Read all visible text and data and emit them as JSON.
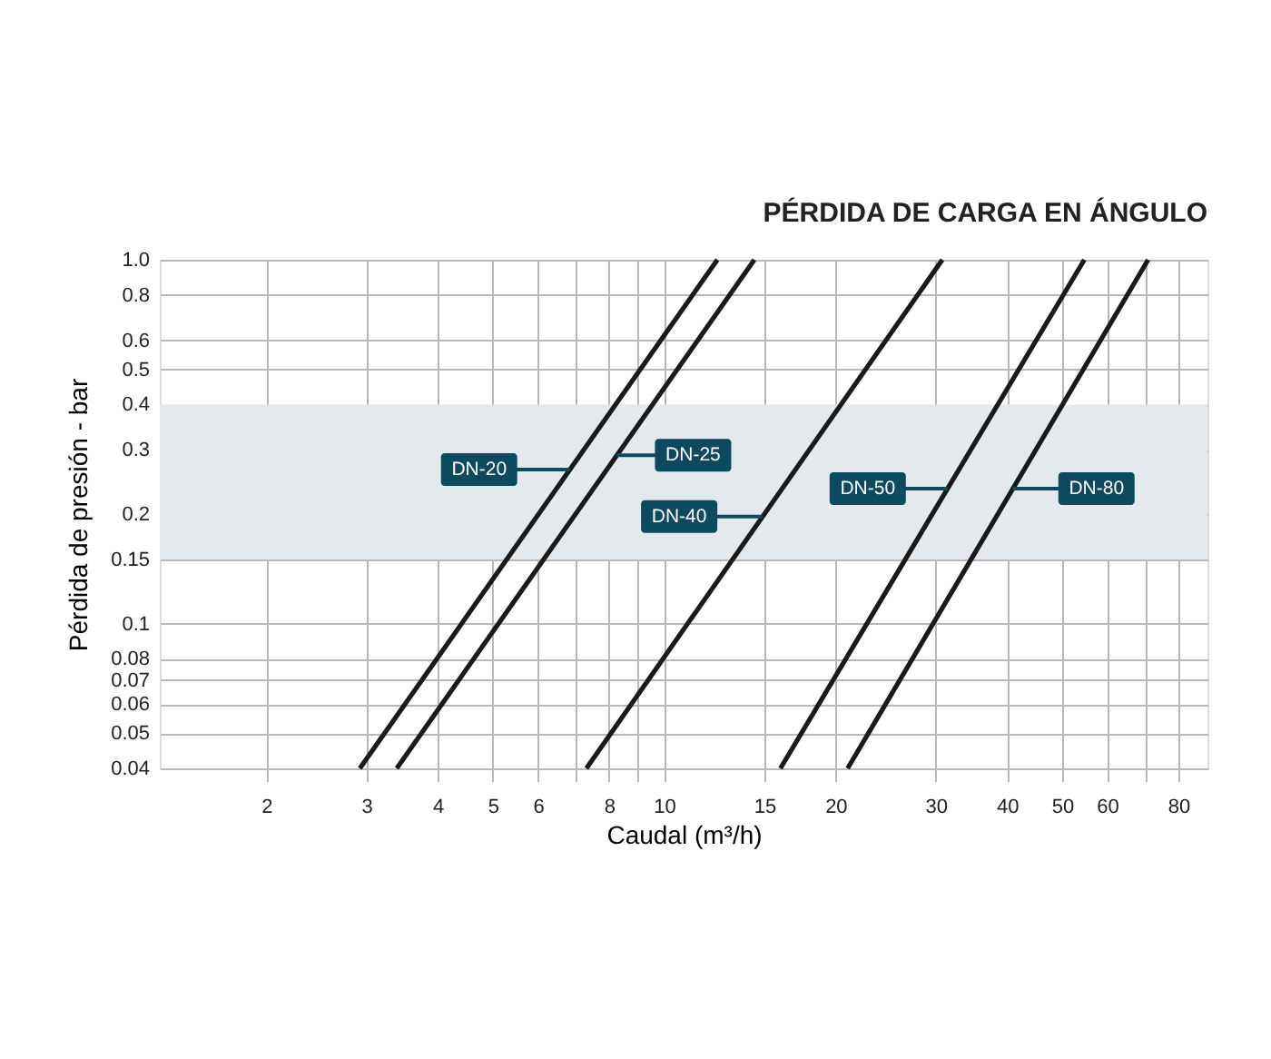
{
  "chart_data": {
    "type": "line",
    "title": "PÉRDIDA DE CARGA EN ÁNGULO",
    "xlabel": "Caudal (m³/h)",
    "ylabel": "Pérdida de presión - bar",
    "log": "xy",
    "xlim": [
      1.3,
      90
    ],
    "ylim": [
      0.04,
      1.0
    ],
    "xticks": [
      2,
      3,
      4,
      5,
      6,
      {
        "value": 7,
        "label": null
      },
      8,
      {
        "value": 9,
        "label": null
      },
      10,
      15,
      20,
      30,
      40,
      50,
      60,
      {
        "value": 70,
        "label": null
      },
      80
    ],
    "yticks": [
      0.04,
      0.05,
      0.06,
      0.07,
      0.08,
      0.1,
      0.15,
      0.2,
      0.3,
      0.4,
      0.5,
      0.6,
      0.8,
      {
        "value": 1.0,
        "label": "1.0"
      }
    ],
    "grid": true,
    "legend": false,
    "marker": "none",
    "line_style": "solid",
    "bands": [
      {
        "axis": "y",
        "from": 0.15,
        "to": 0.4,
        "color": "#e4e9ee"
      }
    ],
    "series": [
      {
        "name": "DN-20",
        "color": "#1a1a1a",
        "x": [
          2.92,
          12.4
        ],
        "values": [
          0.04,
          1.0
        ]
      },
      {
        "name": "DN-25",
        "color": "#1a1a1a",
        "x": [
          3.39,
          14.4
        ],
        "values": [
          0.04,
          1.0
        ]
      },
      {
        "name": "DN-40",
        "color": "#1a1a1a",
        "x": [
          7.3,
          30.8
        ],
        "values": [
          0.04,
          1.0
        ]
      },
      {
        "name": "DN-50",
        "color": "#1a1a1a",
        "x": [
          16.0,
          54.7
        ],
        "values": [
          0.04,
          1.0
        ]
      },
      {
        "name": "DN-80",
        "color": "#1a1a1a",
        "x": [
          21.0,
          70.8
        ],
        "values": [
          0.04,
          1.0
        ]
      }
    ]
  }
}
